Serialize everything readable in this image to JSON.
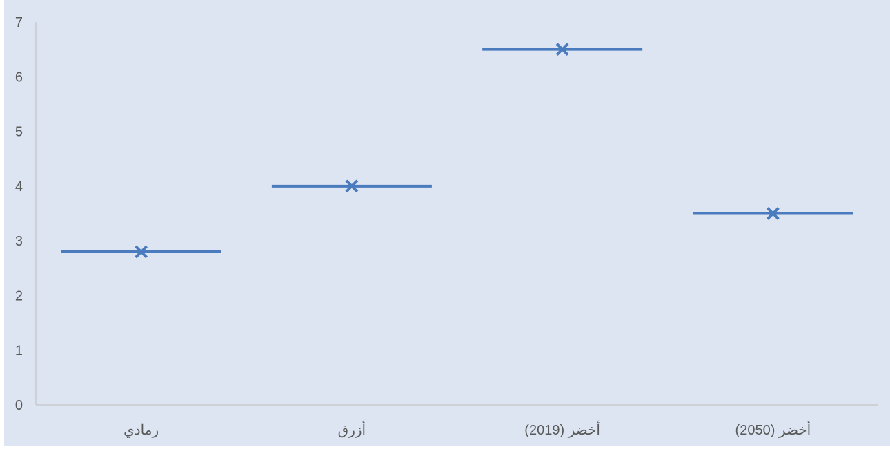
{
  "chart_data": {
    "type": "scatter",
    "categories": [
      "رمادي",
      "أزرق",
      "أخضر (2019)",
      "أخضر (2050)"
    ],
    "values": [
      2.8,
      4.0,
      6.5,
      3.5
    ],
    "ylim": [
      0,
      7
    ],
    "yticks": [
      "0",
      "1",
      "2",
      "3",
      "4",
      "5",
      "6",
      "7"
    ],
    "marker": "x",
    "grid": false,
    "legend": "none"
  },
  "colors": {
    "background": "#dce5f1",
    "series": "#4a7bbf",
    "axis": "#bfbfbf",
    "text": "#595959"
  }
}
